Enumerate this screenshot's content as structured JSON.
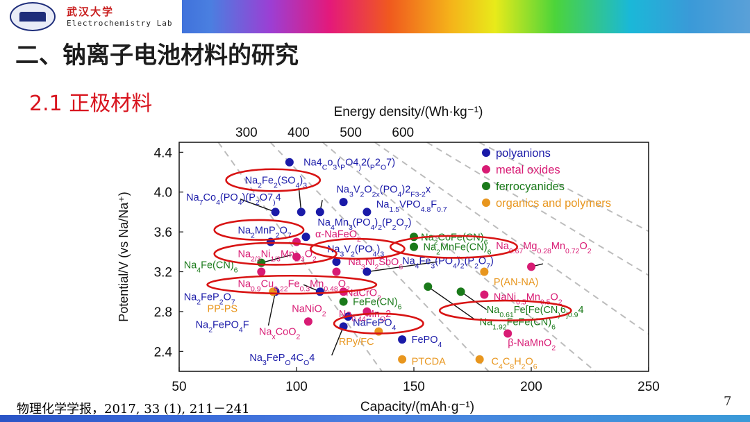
{
  "header": {
    "university": "武汉大学",
    "lab": "Electrochemistry Lab",
    "logo_icon": "university-emblem-icon"
  },
  "slide": {
    "title": "二、钠离子电池材料的研究",
    "subtitle": "2.1  正极材料",
    "citation": "物理化学学报，2017, 33 (1), 211－241",
    "page": "7"
  },
  "colors": {
    "polyanions": "#1a1aa8",
    "metal_oxides": "#d81b74",
    "ferrocyanides": "#1a7a1a",
    "organics": "#e8961e",
    "highlight": "#d81414"
  },
  "chart_data": {
    "type": "scatter",
    "title": "",
    "xlabel": "Capacity/(mAh·g⁻¹)",
    "ylabel": "Potential/V (vs Na/Na⁺)",
    "top_axis_label": "Energy density/(Wh·kg⁻¹)",
    "xlim": [
      50,
      250
    ],
    "ylim": [
      2.2,
      4.5
    ],
    "x_ticks": [
      "50",
      "100",
      "150",
      "200",
      "250"
    ],
    "y_ticks": [
      "2.4",
      "2.8",
      "3.2",
      "3.6",
      "4.0",
      "4.4"
    ],
    "top_ticks": [
      "300",
      "400",
      "500",
      "600"
    ],
    "energy_lines_wh_per_kg": [
      300,
      400,
      500,
      600,
      700,
      800
    ],
    "legend": [
      {
        "label": "polyanions",
        "series": "polyanions"
      },
      {
        "label": "metal oxides",
        "series": "metal_oxides"
      },
      {
        "label": "ferrocyanides",
        "series": "ferrocyanides"
      },
      {
        "label": "organics and polymers",
        "series": "organics"
      }
    ],
    "points": [
      {
        "series": "polyanions",
        "x": 97,
        "y": 4.3
      },
      {
        "series": "polyanions",
        "x": 91,
        "y": 3.8
      },
      {
        "series": "polyanions",
        "x": 102,
        "y": 3.8
      },
      {
        "series": "polyanions",
        "x": 110,
        "y": 3.8
      },
      {
        "series": "polyanions",
        "x": 120,
        "y": 3.9
      },
      {
        "series": "polyanions",
        "x": 130,
        "y": 3.8
      },
      {
        "series": "polyanions",
        "x": 104,
        "y": 3.55
      },
      {
        "series": "polyanions",
        "x": 89,
        "y": 3.5
      },
      {
        "series": "polyanions",
        "x": 117,
        "y": 3.3
      },
      {
        "series": "polyanions",
        "x": 130,
        "y": 3.2
      },
      {
        "series": "polyanions",
        "x": 110,
        "y": 3.0
      },
      {
        "series": "polyanions",
        "x": 91,
        "y": 3.0
      },
      {
        "series": "polyanions",
        "x": 122,
        "y": 2.75
      },
      {
        "series": "polyanions",
        "x": 120,
        "y": 2.65
      },
      {
        "series": "polyanions",
        "x": 145,
        "y": 2.52
      },
      {
        "series": "metal_oxides",
        "x": 100,
        "y": 3.5
      },
      {
        "series": "metal_oxides",
        "x": 117,
        "y": 3.2
      },
      {
        "series": "metal_oxides",
        "x": 120,
        "y": 3.0
      },
      {
        "series": "metal_oxides",
        "x": 105,
        "y": 2.7
      },
      {
        "series": "metal_oxides",
        "x": 85,
        "y": 3.2
      },
      {
        "series": "metal_oxides",
        "x": 100,
        "y": 3.35
      },
      {
        "series": "metal_oxides",
        "x": 130,
        "y": 2.8
      },
      {
        "series": "metal_oxides",
        "x": 180,
        "y": 2.97
      },
      {
        "series": "metal_oxides",
        "x": 190,
        "y": 2.58
      },
      {
        "series": "metal_oxides",
        "x": 200,
        "y": 3.25
      },
      {
        "series": "ferrocyanides",
        "x": 150,
        "y": 3.55
      },
      {
        "series": "ferrocyanides",
        "x": 150,
        "y": 3.45
      },
      {
        "series": "ferrocyanides",
        "x": 85,
        "y": 3.29
      },
      {
        "series": "ferrocyanides",
        "x": 120,
        "y": 2.9
      },
      {
        "series": "ferrocyanides",
        "x": 156,
        "y": 3.05
      },
      {
        "series": "ferrocyanides",
        "x": 170,
        "y": 3.0
      },
      {
        "series": "organics",
        "x": 180,
        "y": 3.2
      },
      {
        "series": "organics",
        "x": 90,
        "y": 3.0
      },
      {
        "series": "organics",
        "x": 135,
        "y": 2.6
      },
      {
        "series": "organics",
        "x": 145,
        "y": 2.32
      },
      {
        "series": "organics",
        "x": 178,
        "y": 2.32
      }
    ],
    "annotations": [
      {
        "text": "Na4Co3(PO4)2(P2O7)",
        "sub": [
          3,
          5,
          7,
          10,
          13,
          15
        ],
        "color": "polyanions",
        "x": 103,
        "y": 4.3,
        "anchor": "start"
      },
      {
        "text": "Na2Fe2(SO4)3",
        "sub": [
          2,
          5,
          9,
          11
        ],
        "color": "polyanions",
        "x": 78,
        "y": 4.12,
        "anchor": "start"
      },
      {
        "text": "Na3V2O2x(PO4)2F3-2x",
        "sub": [
          2,
          4,
          6,
          7,
          11,
          14,
          15,
          16,
          17
        ],
        "color": "polyanions",
        "x": 117,
        "y": 4.03,
        "anchor": "start"
      },
      {
        "text": "Na7Co4(PO4)(P2O7)4",
        "sub": [
          2,
          5,
          9,
          13,
          16,
          18
        ],
        "color": "polyanions",
        "x": 53,
        "y": 3.95,
        "anchor": "start"
      },
      {
        "text": "Na1.5VPO4.8F0.7",
        "sub": [
          2,
          3,
          4,
          8,
          9,
          10,
          12,
          13,
          14
        ],
        "color": "polyanions",
        "x": 134,
        "y": 3.88,
        "anchor": "start"
      },
      {
        "text": "Na4Mn3(PO4)2(P2O7)",
        "sub": [
          2,
          5,
          9,
          11,
          14,
          16
        ],
        "color": "polyanions",
        "x": 109,
        "y": 3.7,
        "anchor": "start"
      },
      {
        "text": "Na2MnP2O7",
        "sub": [
          2,
          6,
          8
        ],
        "color": "polyanions",
        "x": 75,
        "y": 3.62,
        "anchor": "start"
      },
      {
        "text": "α-NaFeO2",
        "sub": [
          7
        ],
        "color": "metal_oxides",
        "x": 108,
        "y": 3.58,
        "anchor": "start"
      },
      {
        "text": "Na2CoFe(CN)6",
        "sub": [
          2,
          11
        ],
        "color": "ferrocyanides",
        "x": 153,
        "y": 3.55,
        "anchor": "start"
      },
      {
        "text": "Na2MnFe(CN)6",
        "sub": [
          2,
          11
        ],
        "color": "ferrocyanides",
        "x": 154,
        "y": 3.45,
        "anchor": "start"
      },
      {
        "text": "Na0.67Mg0.28Mn0.72O2",
        "sub": [
          2,
          3,
          4,
          5,
          8,
          9,
          10,
          11,
          14,
          15,
          16,
          17,
          19
        ],
        "color": "metal_oxides",
        "x": 185,
        "y": 3.46,
        "anchor": "start"
      },
      {
        "text": "Na3V2(PO4)3",
        "sub": [
          2,
          4,
          8,
          10
        ],
        "color": "polyanions",
        "x": 113,
        "y": 3.43,
        "anchor": "start"
      },
      {
        "text": "Na2/3Ni1/3Mn2/3O2",
        "sub": [
          2,
          3,
          4,
          7,
          8,
          9,
          12,
          13,
          14,
          16
        ],
        "color": "metal_oxides",
        "x": 75,
        "y": 3.38,
        "anchor": "start"
      },
      {
        "text": "Na3Ni2SbO6",
        "sub": [
          2,
          5,
          9
        ],
        "color": "metal_oxides",
        "x": 122,
        "y": 3.3,
        "anchor": "start"
      },
      {
        "text": "Na4Fe3(PO4)2(P2O7)",
        "sub": [
          2,
          5,
          9,
          11,
          14,
          16
        ],
        "color": "polyanions",
        "x": 145,
        "y": 3.31,
        "anchor": "start"
      },
      {
        "text": "Na4Fe(CN)6",
        "sub": [
          2,
          9
        ],
        "color": "ferrocyanides",
        "x": 52,
        "y": 3.27,
        "anchor": "start"
      },
      {
        "text": "P(AN-NA)",
        "sub": [],
        "color": "organics",
        "x": 184,
        "y": 3.1,
        "anchor": "start"
      },
      {
        "text": "Na0.9Cu0.22Fe0.3Mn0.48O2",
        "sub": [
          2,
          3,
          4,
          7,
          8,
          9,
          10,
          13,
          14,
          15,
          18,
          19,
          20,
          21,
          23
        ],
        "color": "metal_oxides",
        "x": 75,
        "y": 3.08,
        "anchor": "start"
      },
      {
        "text": "NaCrO2",
        "sub": [
          5
        ],
        "color": "metal_oxides",
        "x": 121,
        "y": 2.99,
        "anchor": "start"
      },
      {
        "text": "NaNi0.5Mn0.5O2",
        "sub": [
          4,
          5,
          6,
          9,
          10,
          11,
          13
        ],
        "color": "metal_oxides",
        "x": 184,
        "y": 2.95,
        "anchor": "start"
      },
      {
        "text": "Na2FeP2O7",
        "sub": [
          2,
          6,
          8
        ],
        "color": "polyanions",
        "x": 52,
        "y": 2.95,
        "anchor": "start"
      },
      {
        "text": "FeFe(CN)6",
        "sub": [
          8
        ],
        "color": "ferrocyanides",
        "x": 124,
        "y": 2.9,
        "anchor": "start"
      },
      {
        "text": "PP-PS",
        "sub": [],
        "color": "organics",
        "x": 62,
        "y": 2.83,
        "anchor": "start"
      },
      {
        "text": "NaNiO2",
        "sub": [
          5
        ],
        "color": "metal_oxides",
        "x": 98,
        "y": 2.83,
        "anchor": "start"
      },
      {
        "text": "Na0.44MnO2",
        "sub": [
          2,
          3,
          4,
          5,
          8
        ],
        "color": "metal_oxides",
        "x": 118,
        "y": 2.78,
        "anchor": "start"
      },
      {
        "text": "Na0.61Fe[Fe(CN)6]0.94",
        "sub": [
          2,
          3,
          4,
          5,
          14,
          16,
          17,
          18,
          19
        ],
        "color": "ferrocyanides",
        "x": 181,
        "y": 2.82,
        "anchor": "start"
      },
      {
        "text": "NaFePO4",
        "sub": [
          6
        ],
        "color": "polyanions",
        "x": 124,
        "y": 2.69,
        "anchor": "start"
      },
      {
        "text": "Na2FePO4F",
        "sub": [
          2,
          7
        ],
        "color": "polyanions",
        "x": 57,
        "y": 2.67,
        "anchor": "start"
      },
      {
        "text": "Na1.92FeFe(CN)6",
        "sub": [
          2,
          3,
          4,
          5,
          14
        ],
        "color": "ferrocyanides",
        "x": 178,
        "y": 2.7,
        "anchor": "start"
      },
      {
        "text": "NaxCoO2",
        "sub": [
          2,
          6
        ],
        "color": "metal_oxides",
        "x": 84,
        "y": 2.6,
        "anchor": "start"
      },
      {
        "text": "FePO4",
        "sub": [
          4
        ],
        "color": "polyanions",
        "x": 149,
        "y": 2.52,
        "anchor": "start"
      },
      {
        "text": "β-NaMnO2",
        "sub": [
          7
        ],
        "color": "metal_oxides",
        "x": 190,
        "y": 2.49,
        "anchor": "start"
      },
      {
        "text": "RPy/FC",
        "sub": [],
        "color": "organics",
        "x": 118,
        "y": 2.5,
        "anchor": "start"
      },
      {
        "text": "Na3FePO4CO4",
        "sub": [
          2,
          6,
          9
        ],
        "color": "polyanions",
        "x": 80,
        "y": 2.34,
        "anchor": "start"
      },
      {
        "text": "PTCDA",
        "sub": [],
        "color": "organics",
        "x": 149,
        "y": 2.3,
        "anchor": "start"
      },
      {
        "text": "C4C8H2O6",
        "sub": [
          1,
          3,
          5,
          7
        ],
        "color": "organics",
        "x": 183,
        "y": 2.3,
        "anchor": "start"
      }
    ],
    "highlights": [
      {
        "label": "Na2Fe2(SO4)3",
        "cx": 90,
        "cy": 4.12,
        "rx": 20,
        "ry": 0.11
      },
      {
        "label": "Na2MnP2O7",
        "cx": 84,
        "cy": 3.62,
        "rx": 19,
        "ry": 0.1
      },
      {
        "label": "Na3V2(PO4)3",
        "cx": 126,
        "cy": 3.43,
        "rx": 20,
        "ry": 0.1
      },
      {
        "label": "Na2/3Ni1/3Mn2/3O2",
        "cx": 91,
        "cy": 3.38,
        "rx": 26,
        "ry": 0.11
      },
      {
        "label": "Na2MnFe(CN)6",
        "cx": 167,
        "cy": 3.45,
        "rx": 27,
        "ry": 0.11
      },
      {
        "label": "Na0.9Cu0.22Fe0.3Mn0.48O2",
        "cx": 98,
        "cy": 3.07,
        "rx": 36,
        "ry": 0.09
      },
      {
        "label": "Na0.61Fe[Fe(CN)6]0.94",
        "cx": 189,
        "cy": 2.81,
        "rx": 28,
        "ry": 0.1
      },
      {
        "label": "NaFePO4",
        "cx": 135,
        "cy": 2.68,
        "rx": 19,
        "ry": 0.1
      }
    ],
    "leaders": [
      {
        "from": [
          101,
          4.04
        ],
        "to": [
          102,
          3.8
        ]
      },
      {
        "from": [
          76,
          3.93
        ],
        "to": [
          91,
          3.8
        ]
      },
      {
        "from": [
          111,
          3.92
        ],
        "to": [
          110,
          3.8
        ]
      },
      {
        "from": [
          160,
          3.3
        ],
        "to": [
          130,
          3.2
        ]
      },
      {
        "from": [
          103,
          3.07
        ],
        "to": [
          110,
          3.0
        ]
      },
      {
        "from": [
          88,
          2.66
        ],
        "to": [
          91,
          3.0
        ]
      },
      {
        "from": [
          135,
          2.79
        ],
        "to": [
          122,
          2.75
        ]
      },
      {
        "from": [
          115,
          2.36
        ],
        "to": [
          120,
          2.65
        ]
      },
      {
        "from": [
          176,
          2.72
        ],
        "to": [
          156,
          3.05
        ]
      },
      {
        "from": [
          181,
          2.82
        ],
        "to": [
          170,
          3.0
        ]
      },
      {
        "from": [
          205,
          3.28
        ],
        "to": [
          200,
          3.25
        ]
      },
      {
        "from": [
          98,
          3.37
        ],
        "to": [
          85,
          3.29
        ]
      }
    ]
  }
}
